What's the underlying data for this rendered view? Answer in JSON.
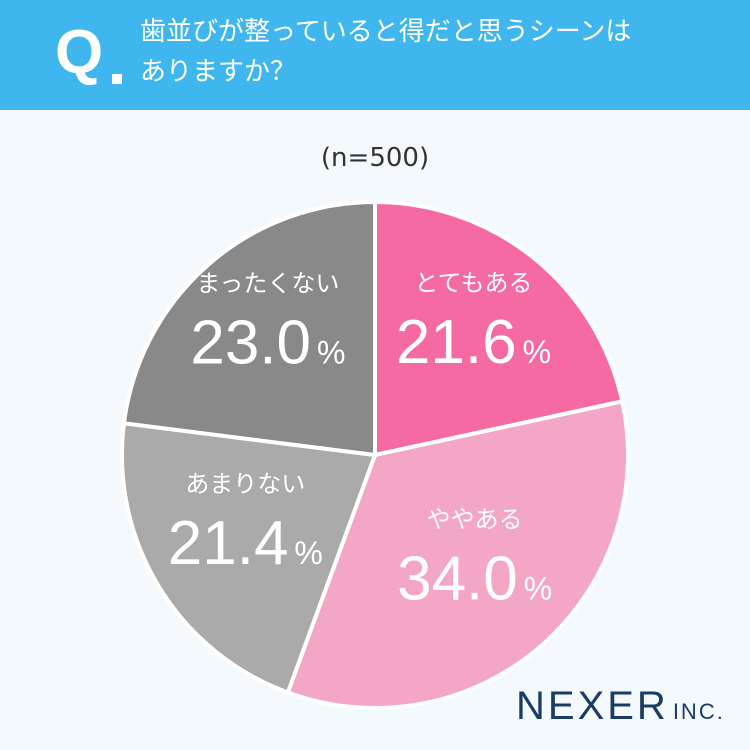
{
  "header": {
    "q_mark": "Q",
    "question_line1": "歯並びが整っていると得だと思うシーンは",
    "question_line2": "ありますか？"
  },
  "sample_note": "(n=500)",
  "logo": {
    "name": "NEXER",
    "suffix": "INC."
  },
  "chart_data": {
    "type": "pie",
    "title": "歯並びが整っていると得だと思うシーンはありますか？",
    "subtitle": "(n=500)",
    "unit": "%",
    "slices": [
      {
        "label": "とてもある",
        "value": 21.6,
        "value_text": "21.6",
        "color": "#f56aa2"
      },
      {
        "label": "ややある",
        "value": 34.0,
        "value_text": "34.0",
        "color": "#f3a6c6"
      },
      {
        "label": "あまりない",
        "value": 21.4,
        "value_text": "21.4",
        "color": "#abaaab"
      },
      {
        "label": "まったくない",
        "value": 23.0,
        "value_text": "23.0",
        "color": "#898989"
      }
    ]
  }
}
